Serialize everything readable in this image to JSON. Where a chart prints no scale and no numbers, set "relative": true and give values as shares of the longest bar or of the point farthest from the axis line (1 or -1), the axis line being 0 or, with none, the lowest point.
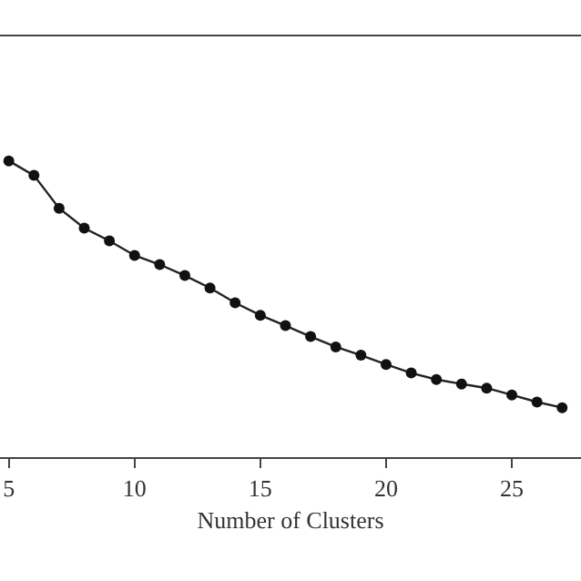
{
  "chart_data": {
    "type": "line",
    "relative": true,
    "xlabel": "Number of Clusters",
    "x": [
      5,
      6,
      7,
      8,
      9,
      10,
      11,
      12,
      13,
      14,
      15,
      16,
      17,
      18,
      19,
      20,
      21,
      22,
      23,
      24,
      25,
      26,
      27
    ],
    "series": [
      {
        "color": "#222222",
        "values": [
          1.0,
          0.951,
          0.84,
          0.773,
          0.73,
          0.681,
          0.65,
          0.613,
          0.571,
          0.521,
          0.479,
          0.444,
          0.407,
          0.372,
          0.344,
          0.313,
          0.284,
          0.262,
          0.247,
          0.233,
          0.21,
          0.186,
          0.167
        ]
      }
    ],
    "xlim": [
      4.65,
      27.75
    ],
    "xticks": [
      5,
      10,
      15,
      20,
      25
    ],
    "marker": "circle",
    "line_style": "solid",
    "tick_labels": "x"
  }
}
